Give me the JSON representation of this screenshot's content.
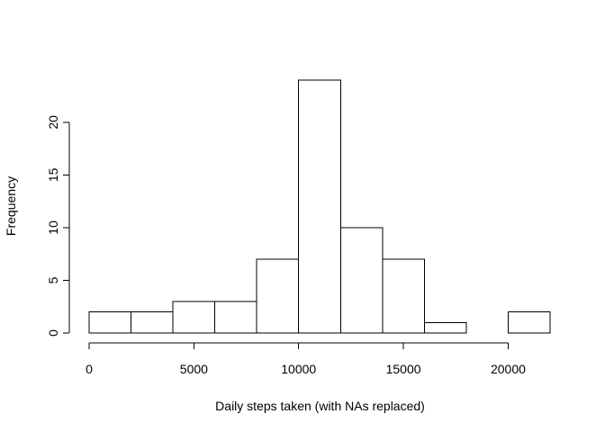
{
  "chart_data": {
    "type": "bar",
    "title": "",
    "xlabel": "Daily steps taken (with NAs replaced)",
    "ylabel": "Frequency",
    "bins": [
      {
        "start": 0,
        "end": 2000,
        "count": 2
      },
      {
        "start": 2000,
        "end": 4000,
        "count": 2
      },
      {
        "start": 4000,
        "end": 6000,
        "count": 3
      },
      {
        "start": 6000,
        "end": 8000,
        "count": 3
      },
      {
        "start": 8000,
        "end": 10000,
        "count": 7
      },
      {
        "start": 10000,
        "end": 12000,
        "count": 24
      },
      {
        "start": 12000,
        "end": 14000,
        "count": 10
      },
      {
        "start": 14000,
        "end": 16000,
        "count": 7
      },
      {
        "start": 16000,
        "end": 18000,
        "count": 1
      },
      {
        "start": 18000,
        "end": 20000,
        "count": 0
      },
      {
        "start": 20000,
        "end": 22000,
        "count": 2
      }
    ],
    "xlim": [
      0,
      22000
    ],
    "ylim": [
      0,
      24
    ],
    "xticks": [
      0,
      5000,
      10000,
      15000,
      20000
    ],
    "xtick_labels": [
      "0",
      "5000",
      "10000",
      "15000",
      "20000"
    ],
    "yticks": [
      0,
      5,
      10,
      15,
      20
    ],
    "ytick_labels": [
      "0",
      "5",
      "10",
      "15",
      "20"
    ],
    "grid": false,
    "legend": "none",
    "colors": {
      "bar_fill": "#ffffff",
      "bar_stroke": "#000000",
      "axis": "#000000"
    }
  }
}
